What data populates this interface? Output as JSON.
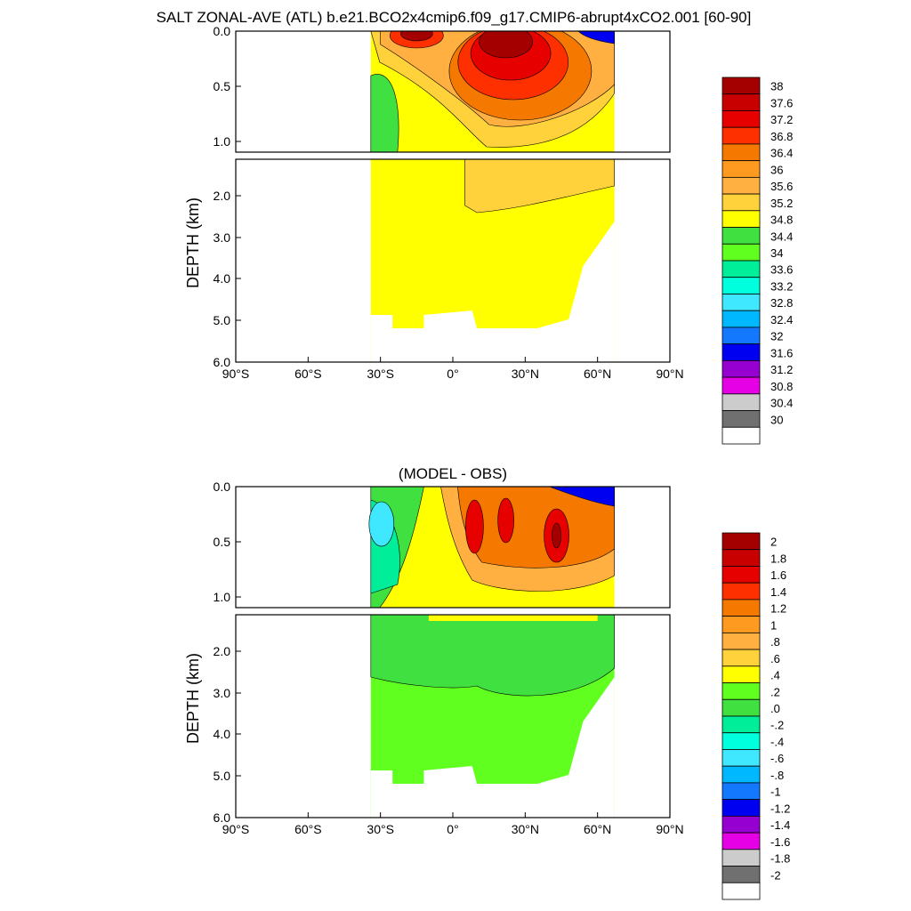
{
  "title": "SALT ZONAL-AVE (ATL) b.e21.BCO2x4cmip6.f09_g17.CMIP6-abrupt4xCO2.001 [60-90]",
  "chart_data": [
    {
      "type": "heatmap",
      "subtitle": "",
      "ylabel": "DEPTH (km)",
      "xlim": [
        -90,
        90
      ],
      "ylim": [
        0,
        6
      ],
      "xticks": [
        -90,
        -60,
        -30,
        0,
        30,
        60,
        90
      ],
      "xtick_labels": [
        "90°S",
        "60°S",
        "30°S",
        "0°",
        "30°N",
        "60°N",
        "90°N"
      ],
      "yticks_upper": [
        "0.0",
        "0.5",
        "1.0"
      ],
      "yticks_lower": [
        "2.0",
        "3.0",
        "4.0",
        "5.0",
        "6.0"
      ],
      "ocean_extent": {
        "lat_min": -34,
        "lat_max": 67
      },
      "colorbar": {
        "labels": [
          "38",
          "37.6",
          "37.2",
          "36.8",
          "36.4",
          "36",
          "35.6",
          "35.2",
          "34.8",
          "34.4",
          "34",
          "33.6",
          "33.2",
          "32.8",
          "32.4",
          "32",
          "31.6",
          "31.2",
          "30.8",
          "30.4",
          "30"
        ],
        "colors": [
          "#a50000",
          "#c80000",
          "#e60000",
          "#ff3000",
          "#f57800",
          "#ff9a20",
          "#ffb040",
          "#ffd23c",
          "#ffff00",
          "#40e040",
          "#60ff20",
          "#00ee99",
          "#00ffdd",
          "#40e8ff",
          "#00b8ff",
          "#1478ff",
          "#0000f0",
          "#9600d0",
          "#e600e6",
          "#cccccc",
          "#707070",
          "#ffffff"
        ]
      }
    },
    {
      "type": "heatmap",
      "subtitle": "(MODEL - OBS)",
      "ylabel": "DEPTH (km)",
      "xlim": [
        -90,
        90
      ],
      "ylim": [
        0,
        6
      ],
      "xticks": [
        -90,
        -60,
        -30,
        0,
        30,
        60,
        90
      ],
      "xtick_labels": [
        "90°S",
        "60°S",
        "30°S",
        "0°",
        "30°N",
        "60°N",
        "90°N"
      ],
      "yticks_upper": [
        "0.0",
        "0.5",
        "1.0"
      ],
      "yticks_lower": [
        "2.0",
        "3.0",
        "4.0",
        "5.0",
        "6.0"
      ],
      "ocean_extent": {
        "lat_min": -34,
        "lat_max": 67
      },
      "colorbar": {
        "labels": [
          "2",
          "1.8",
          "1.6",
          "1.4",
          "1.2",
          "1",
          ".8",
          ".6",
          ".4",
          ".2",
          ".0",
          "-.2",
          "-.4",
          "-.6",
          "-.8",
          "-1",
          "-1.2",
          "-1.4",
          "-1.6",
          "-1.8",
          "-2"
        ],
        "colors": [
          "#a50000",
          "#c80000",
          "#e60000",
          "#ff3000",
          "#f57800",
          "#ff9a20",
          "#ffb040",
          "#ffd23c",
          "#ffff00",
          "#60ff20",
          "#40e040",
          "#00ee99",
          "#00ffdd",
          "#40e8ff",
          "#00b8ff",
          "#1478ff",
          "#0000f0",
          "#9600d0",
          "#e600e6",
          "#cccccc",
          "#707070",
          "#ffffff"
        ]
      }
    }
  ]
}
